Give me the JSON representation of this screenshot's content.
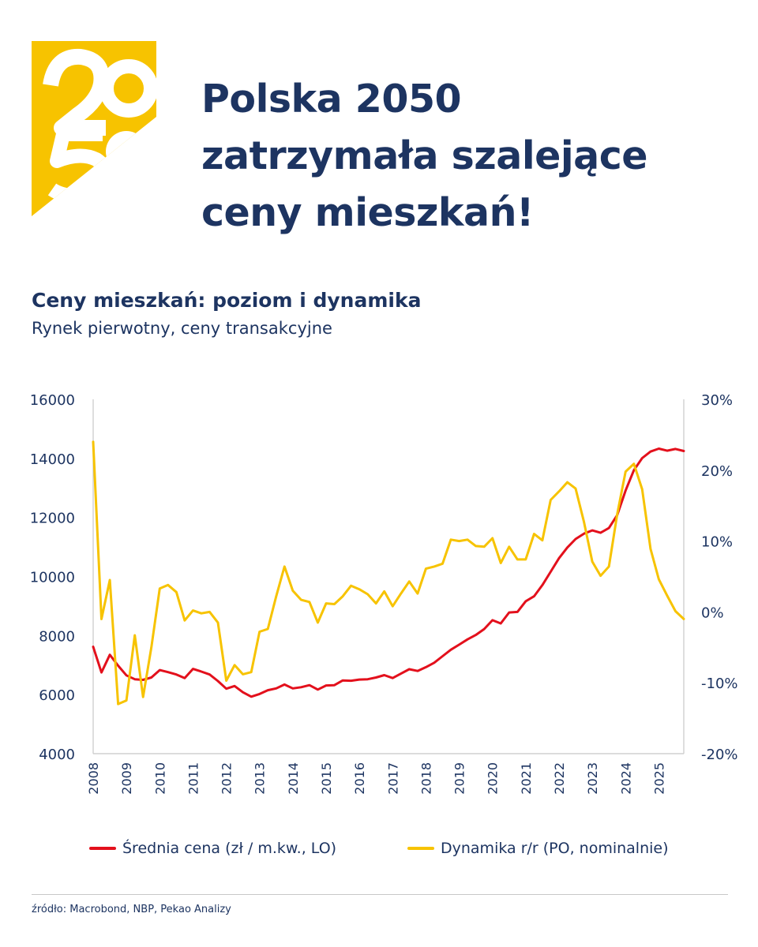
{
  "logo": {
    "text": "2050",
    "color": "#f7c300"
  },
  "headline": {
    "lines": [
      "Polska 2050",
      "zatrzymała szalejące",
      "ceny mieszkań!"
    ]
  },
  "colors": {
    "navy": "#1d3461",
    "price_line": "#e3101c",
    "dynamics_line": "#f7c300",
    "axis": "#c8c8c8"
  },
  "chart_data": {
    "type": "line",
    "title": "Ceny mieszkań: poziom i dynamika",
    "subtitle": "Rynek pierwotny, ceny transakcyjne",
    "x_ticks": [
      "2008",
      "2009",
      "2010",
      "2011",
      "2012",
      "2013",
      "2014",
      "2015",
      "2016",
      "2017",
      "2018",
      "2019",
      "2020",
      "2021",
      "2022",
      "2023",
      "2024",
      "2025"
    ],
    "x_range": [
      2008,
      2025.75
    ],
    "y_left": {
      "ticks": [
        "4000",
        "6000",
        "8000",
        "10000",
        "12000",
        "14000",
        "16000"
      ],
      "range": [
        4000,
        16000
      ]
    },
    "y_right": {
      "ticks": [
        "-20%",
        "-10%",
        "0%",
        "10%",
        "20%",
        "30%"
      ],
      "range": [
        -20,
        30
      ]
    },
    "grid": false,
    "legend_position": "bottom",
    "series": [
      {
        "name": "Średnia cena (zł / m.kw., LO)",
        "axis": "left",
        "color": "#e3101c",
        "points": [
          [
            2008.0,
            7620
          ],
          [
            2008.25,
            6750
          ],
          [
            2008.5,
            7350
          ],
          [
            2008.75,
            6980
          ],
          [
            2009.0,
            6650
          ],
          [
            2009.25,
            6520
          ],
          [
            2009.5,
            6500
          ],
          [
            2009.75,
            6580
          ],
          [
            2010.0,
            6830
          ],
          [
            2010.25,
            6760
          ],
          [
            2010.5,
            6680
          ],
          [
            2010.75,
            6560
          ],
          [
            2011.0,
            6870
          ],
          [
            2011.25,
            6780
          ],
          [
            2011.5,
            6680
          ],
          [
            2011.75,
            6460
          ],
          [
            2012.0,
            6200
          ],
          [
            2012.25,
            6290
          ],
          [
            2012.5,
            6080
          ],
          [
            2012.75,
            5930
          ],
          [
            2013.0,
            6020
          ],
          [
            2013.25,
            6150
          ],
          [
            2013.5,
            6210
          ],
          [
            2013.75,
            6340
          ],
          [
            2014.0,
            6210
          ],
          [
            2014.25,
            6250
          ],
          [
            2014.5,
            6320
          ],
          [
            2014.75,
            6170
          ],
          [
            2015.0,
            6310
          ],
          [
            2015.25,
            6320
          ],
          [
            2015.5,
            6480
          ],
          [
            2015.75,
            6470
          ],
          [
            2016.0,
            6510
          ],
          [
            2016.25,
            6520
          ],
          [
            2016.5,
            6580
          ],
          [
            2016.75,
            6660
          ],
          [
            2017.0,
            6560
          ],
          [
            2017.25,
            6710
          ],
          [
            2017.5,
            6860
          ],
          [
            2017.75,
            6800
          ],
          [
            2018.0,
            6930
          ],
          [
            2018.25,
            7080
          ],
          [
            2018.5,
            7300
          ],
          [
            2018.75,
            7520
          ],
          [
            2019.0,
            7690
          ],
          [
            2019.25,
            7870
          ],
          [
            2019.5,
            8020
          ],
          [
            2019.75,
            8220
          ],
          [
            2020.0,
            8520
          ],
          [
            2020.25,
            8410
          ],
          [
            2020.5,
            8780
          ],
          [
            2020.75,
            8800
          ],
          [
            2021.0,
            9160
          ],
          [
            2021.25,
            9330
          ],
          [
            2021.5,
            9710
          ],
          [
            2021.75,
            10160
          ],
          [
            2022.0,
            10620
          ],
          [
            2022.25,
            10980
          ],
          [
            2022.5,
            11270
          ],
          [
            2022.75,
            11450
          ],
          [
            2023.0,
            11560
          ],
          [
            2023.25,
            11480
          ],
          [
            2023.5,
            11640
          ],
          [
            2023.75,
            12080
          ],
          [
            2024.0,
            12910
          ],
          [
            2024.25,
            13600
          ],
          [
            2024.5,
            14010
          ],
          [
            2024.75,
            14230
          ],
          [
            2025.0,
            14330
          ],
          [
            2025.25,
            14260
          ],
          [
            2025.5,
            14320
          ],
          [
            2025.75,
            14250
          ],
          [
            2026.0,
            14250
          ]
        ]
      },
      {
        "name": "Dynamika r/r (PO, nominalnie)",
        "axis": "right",
        "color": "#f7c300",
        "points": [
          [
            2008.0,
            24
          ],
          [
            2008.25,
            -1
          ],
          [
            2008.5,
            4.5
          ],
          [
            2008.75,
            -13
          ],
          [
            2009.0,
            -12.5
          ],
          [
            2009.25,
            -3.3
          ],
          [
            2009.5,
            -12
          ],
          [
            2009.75,
            -5
          ],
          [
            2010.0,
            3.3
          ],
          [
            2010.25,
            3.8
          ],
          [
            2010.5,
            2.8
          ],
          [
            2010.75,
            -1.2
          ],
          [
            2011.0,
            0.2
          ],
          [
            2011.25,
            -0.2
          ],
          [
            2011.5,
            0.0
          ],
          [
            2011.75,
            -1.5
          ],
          [
            2012.0,
            -9.7
          ],
          [
            2012.25,
            -7.5
          ],
          [
            2012.5,
            -8.8
          ],
          [
            2012.75,
            -8.5
          ],
          [
            2013.0,
            -2.8
          ],
          [
            2013.25,
            -2.4
          ],
          [
            2013.5,
            2.2
          ],
          [
            2013.75,
            6.4
          ],
          [
            2014.0,
            3.0
          ],
          [
            2014.25,
            1.7
          ],
          [
            2014.5,
            1.4
          ],
          [
            2014.75,
            -1.5
          ],
          [
            2015.0,
            1.2
          ],
          [
            2015.25,
            1.1
          ],
          [
            2015.5,
            2.2
          ],
          [
            2015.75,
            3.7
          ],
          [
            2016.0,
            3.2
          ],
          [
            2016.25,
            2.5
          ],
          [
            2016.5,
            1.2
          ],
          [
            2016.75,
            2.9
          ],
          [
            2017.0,
            0.8
          ],
          [
            2017.25,
            2.6
          ],
          [
            2017.5,
            4.3
          ],
          [
            2017.75,
            2.6
          ],
          [
            2018.0,
            6.1
          ],
          [
            2018.25,
            6.4
          ],
          [
            2018.5,
            6.8
          ],
          [
            2018.75,
            10.2
          ],
          [
            2019.0,
            10.0
          ],
          [
            2019.25,
            10.2
          ],
          [
            2019.5,
            9.3
          ],
          [
            2019.75,
            9.2
          ],
          [
            2020.0,
            10.4
          ],
          [
            2020.25,
            6.9
          ],
          [
            2020.5,
            9.2
          ],
          [
            2020.75,
            7.4
          ],
          [
            2021.0,
            7.4
          ],
          [
            2021.25,
            11.0
          ],
          [
            2021.5,
            10.1
          ],
          [
            2021.75,
            15.8
          ],
          [
            2022.0,
            17.0
          ],
          [
            2022.25,
            18.3
          ],
          [
            2022.5,
            17.4
          ],
          [
            2022.75,
            12.7
          ],
          [
            2023.0,
            7.1
          ],
          [
            2023.25,
            5.1
          ],
          [
            2023.5,
            6.4
          ],
          [
            2023.75,
            13.8
          ],
          [
            2024.0,
            19.8
          ],
          [
            2024.25,
            20.9
          ],
          [
            2024.5,
            17.3
          ],
          [
            2024.75,
            8.9
          ],
          [
            2025.0,
            4.6
          ],
          [
            2025.25,
            2.3
          ],
          [
            2025.5,
            0.1
          ],
          [
            2025.75,
            -1.0
          ],
          [
            2026.0,
            -1.0
          ]
        ]
      }
    ]
  },
  "legend": {
    "price": "Średnia cena (zł / m.kw., LO)",
    "dynamics": "Dynamika r/r (PO, nominalnie)"
  },
  "source": "źródło: Macrobond, NBP, Pekao Analizy"
}
